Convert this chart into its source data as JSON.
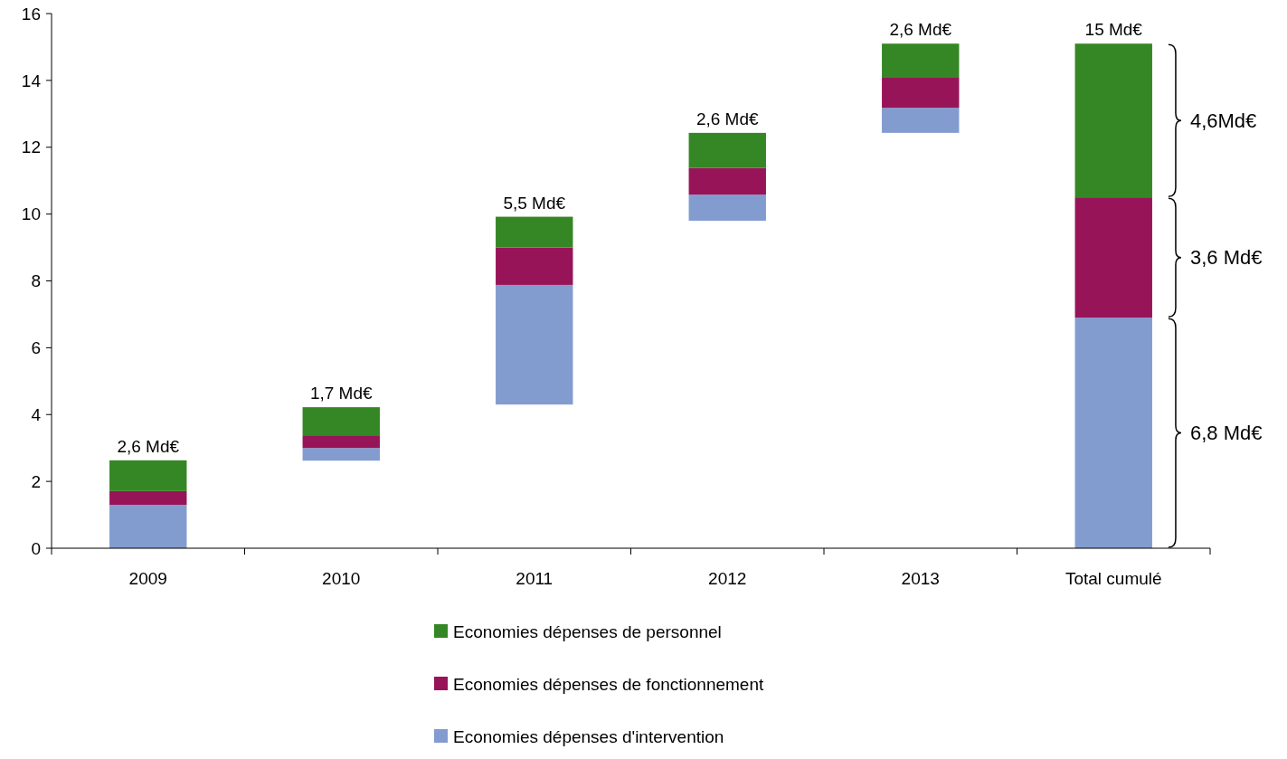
{
  "chart_data": {
    "type": "bar",
    "categories": [
      "2009",
      "2010",
      "2011",
      "2012",
      "2013",
      "Total cumulé"
    ],
    "series": [
      {
        "name": "Economies dépenses d'intervention",
        "color": "#829cd0",
        "base": [
          0,
          2.62,
          4.3,
          9.8,
          12.43,
          0
        ],
        "values": [
          1.3,
          0.38,
          3.58,
          0.78,
          0.75,
          6.9
        ]
      },
      {
        "name": "Economies dépenses de fonctionnement",
        "color": "#981458",
        "base": [
          1.3,
          3.0,
          7.88,
          10.58,
          13.18,
          6.9
        ],
        "values": [
          0.41,
          0.38,
          1.12,
          0.8,
          0.92,
          3.6
        ]
      },
      {
        "name": "Economies dépenses de personnel",
        "color": "#358725",
        "base": [
          1.71,
          3.38,
          9.0,
          11.38,
          14.1,
          10.5
        ],
        "values": [
          0.92,
          0.84,
          0.92,
          1.05,
          1.0,
          4.6
        ]
      }
    ],
    "annotations": [
      {
        "text": "2,6 Md€",
        "x": "2009",
        "y": 2.63
      },
      {
        "text": "1,7 Md€",
        "x": "2010",
        "y": 4.22
      },
      {
        "text": "5,5 Md€",
        "x": "2011",
        "y": 9.92
      },
      {
        "text": "2,6 Md€",
        "x": "2012",
        "y": 12.43
      },
      {
        "text": "2,6 Md€",
        "x": "2013",
        "y": 15.1
      },
      {
        "text": "15 Md€",
        "x": "Total cumulé",
        "y": 15.1
      },
      "4,6Md€",
      "3,6 Md€",
      "6,8 Md€"
    ],
    "ylim": [
      0,
      16
    ],
    "yticks": [
      0,
      2,
      4,
      6,
      8,
      10,
      12,
      14,
      16
    ],
    "grid": false,
    "legend": "bottom"
  }
}
